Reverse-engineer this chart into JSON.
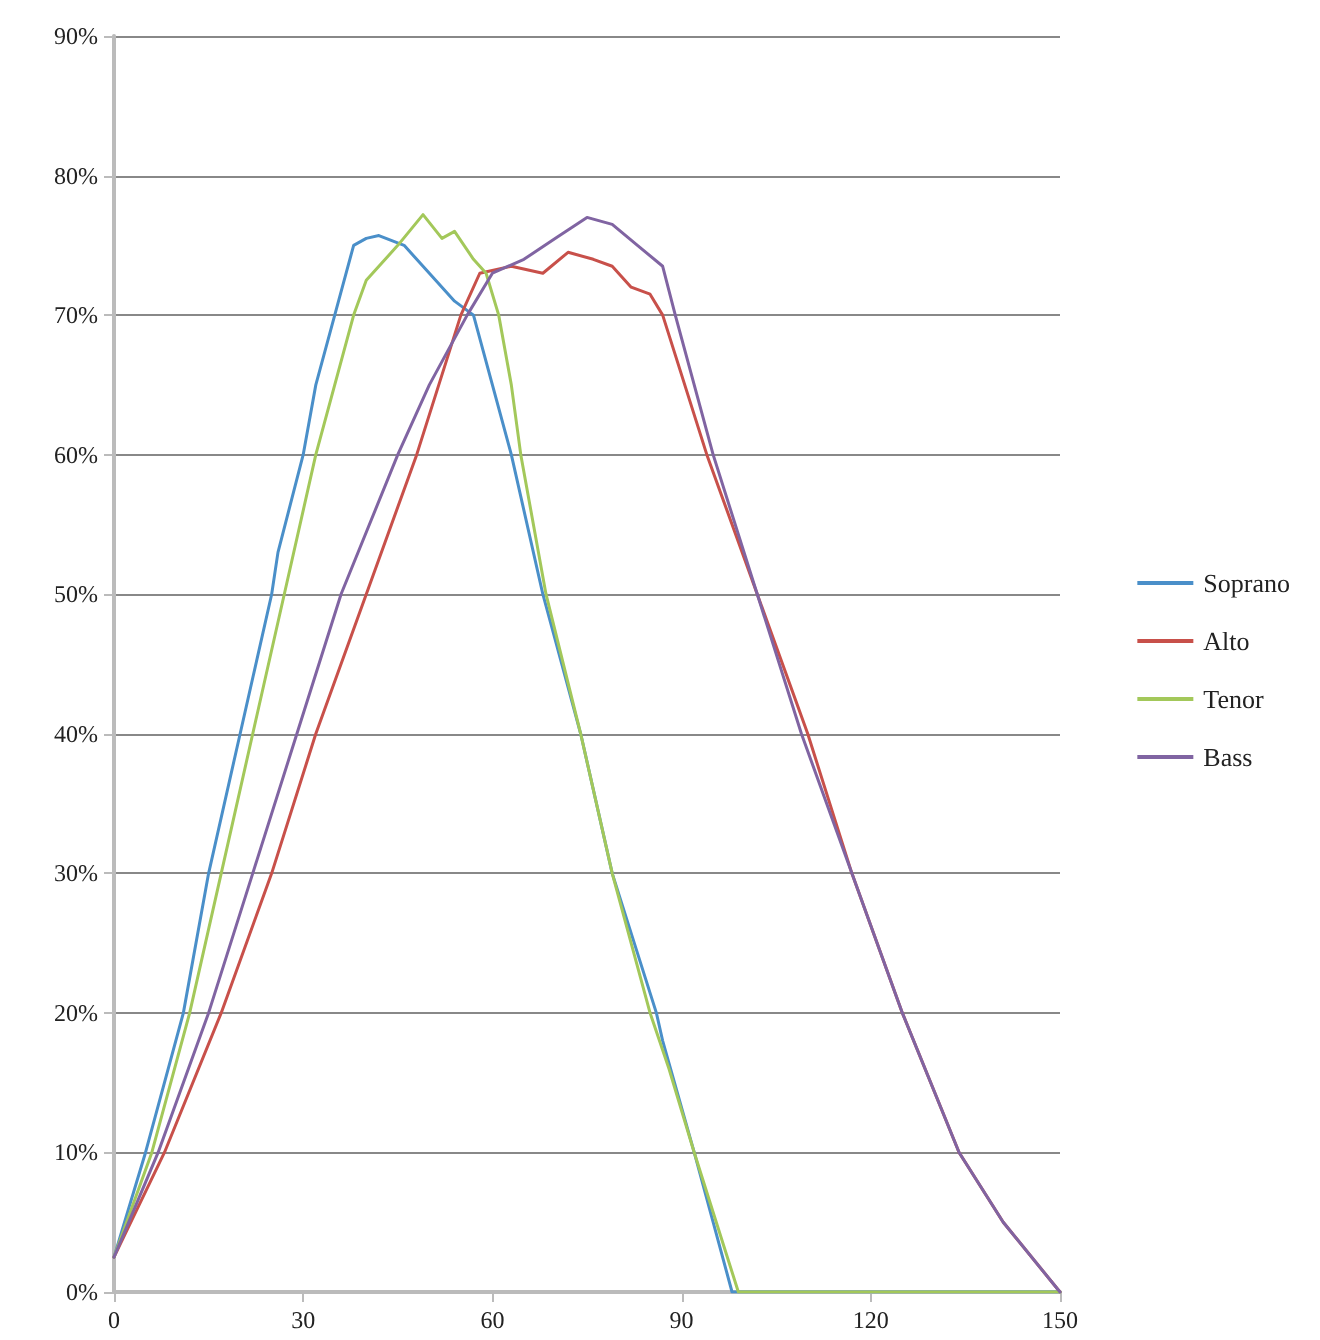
{
  "chart_data": {
    "type": "line",
    "marker": "none",
    "line_style": "solid",
    "grid": "y",
    "legend": "right",
    "xlim": [
      0,
      150
    ],
    "xticks": [
      0,
      30,
      60,
      90,
      120,
      150
    ],
    "ylim": [
      0,
      90
    ],
    "yticks": [
      {
        "value": 0,
        "label": "0%"
      },
      {
        "value": 10,
        "label": "10%"
      },
      {
        "value": 20,
        "label": "20%"
      },
      {
        "value": 30,
        "label": "30%"
      },
      {
        "value": 40,
        "label": "40%"
      },
      {
        "value": 50,
        "label": "50%"
      },
      {
        "value": 60,
        "label": "60%"
      },
      {
        "value": 70,
        "label": "70%"
      },
      {
        "value": 80,
        "label": "80%"
      },
      {
        "value": 90,
        "label": "90%"
      }
    ],
    "series": [
      {
        "name": "Soprano",
        "color": "#4a8fc9",
        "x": [
          0,
          5,
          11,
          15,
          20,
          25,
          26,
          30,
          32,
          35,
          38,
          40,
          42,
          46,
          50,
          54,
          57,
          60,
          63,
          68,
          74,
          79,
          86,
          87,
          92,
          95,
          98,
          150
        ],
        "values": [
          2.5,
          10,
          20,
          30,
          40,
          50,
          53,
          60,
          65,
          70,
          75,
          75.5,
          75.7,
          75,
          73,
          71,
          70,
          65,
          60,
          50,
          40,
          30,
          20,
          18,
          10,
          5,
          0,
          0
        ]
      },
      {
        "name": "Alto",
        "color": "#c8504a",
        "x": [
          0,
          8,
          17,
          25,
          32,
          40,
          48,
          55,
          58,
          63,
          68,
          72,
          76,
          79,
          82,
          85,
          87,
          94,
          102,
          110,
          117,
          125,
          134,
          141,
          150
        ],
        "values": [
          2.5,
          10,
          20,
          30,
          40,
          50,
          60,
          70,
          73,
          73.5,
          73,
          74.5,
          74,
          73.5,
          72,
          71.5,
          70,
          60,
          50,
          40,
          30,
          20,
          10,
          5,
          0
        ]
      },
      {
        "name": "Tenor",
        "color": "#a3c85a",
        "x": [
          0,
          6,
          12,
          17,
          22,
          27,
          32,
          38,
          40,
          45,
          49,
          52,
          54,
          57,
          59,
          61,
          63,
          64.5,
          68.5,
          74,
          79,
          85,
          88,
          92,
          99,
          150
        ],
        "values": [
          2.5,
          10,
          20,
          30,
          40,
          50,
          60,
          70,
          72.5,
          75,
          77.2,
          75.5,
          76,
          74,
          73,
          70,
          65,
          60,
          50,
          40,
          30,
          20,
          16,
          10,
          0,
          0
        ]
      },
      {
        "name": "Bass",
        "color": "#8064a2",
        "x": [
          0,
          7,
          15,
          22,
          29,
          36,
          45,
          50,
          56,
          60,
          65,
          70,
          75,
          79,
          83,
          87,
          89,
          95,
          102,
          109,
          117,
          125,
          134,
          141,
          150
        ],
        "values": [
          2.5,
          10,
          20,
          30,
          40,
          50,
          60,
          65,
          70,
          73,
          74,
          75.5,
          77,
          76.5,
          75,
          73.5,
          70,
          60,
          50,
          40,
          30,
          20,
          10,
          5,
          0
        ]
      }
    ]
  }
}
